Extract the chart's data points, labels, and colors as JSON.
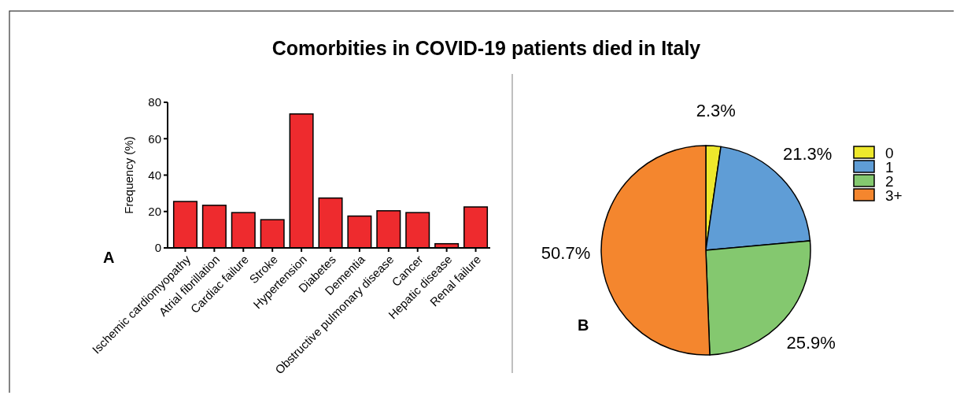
{
  "chart_data": [
    {
      "type": "bar",
      "title": "Comorbities in COVID-19 patients died in Italy",
      "ylabel": "Frequency (%)",
      "annotations": [
        "A"
      ],
      "categories": [
        "Ischemic cardiomyopathy",
        "Atrial fibrillation",
        "Cardiac failure",
        "Stroke",
        "Hypertension",
        "Diabetes",
        "Dementia",
        "Obstructive pulmonary disease",
        "Cancer",
        "Hepatic disease",
        "Renal failure"
      ],
      "values": [
        25.5,
        23.4,
        19.4,
        15.5,
        73.6,
        27.4,
        17.5,
        20.4,
        19.4,
        2.3,
        22.5
      ],
      "color": "#ee2b2e",
      "ylim": [
        0,
        80
      ],
      "yticks": [
        0,
        20,
        40,
        60,
        80
      ],
      "grid": false
    },
    {
      "type": "pie",
      "annotations": [
        "B"
      ],
      "categories": [
        "0",
        "1",
        "2",
        "3+"
      ],
      "values": [
        2.3,
        21.3,
        25.9,
        50.7
      ],
      "value_labels": [
        "2.3%",
        "21.3%",
        "25.9%",
        "50.7%"
      ],
      "colors": [
        "#eee82c",
        "#5f9dd6",
        "#84c86f",
        "#f4862e"
      ],
      "legend": "right"
    }
  ]
}
